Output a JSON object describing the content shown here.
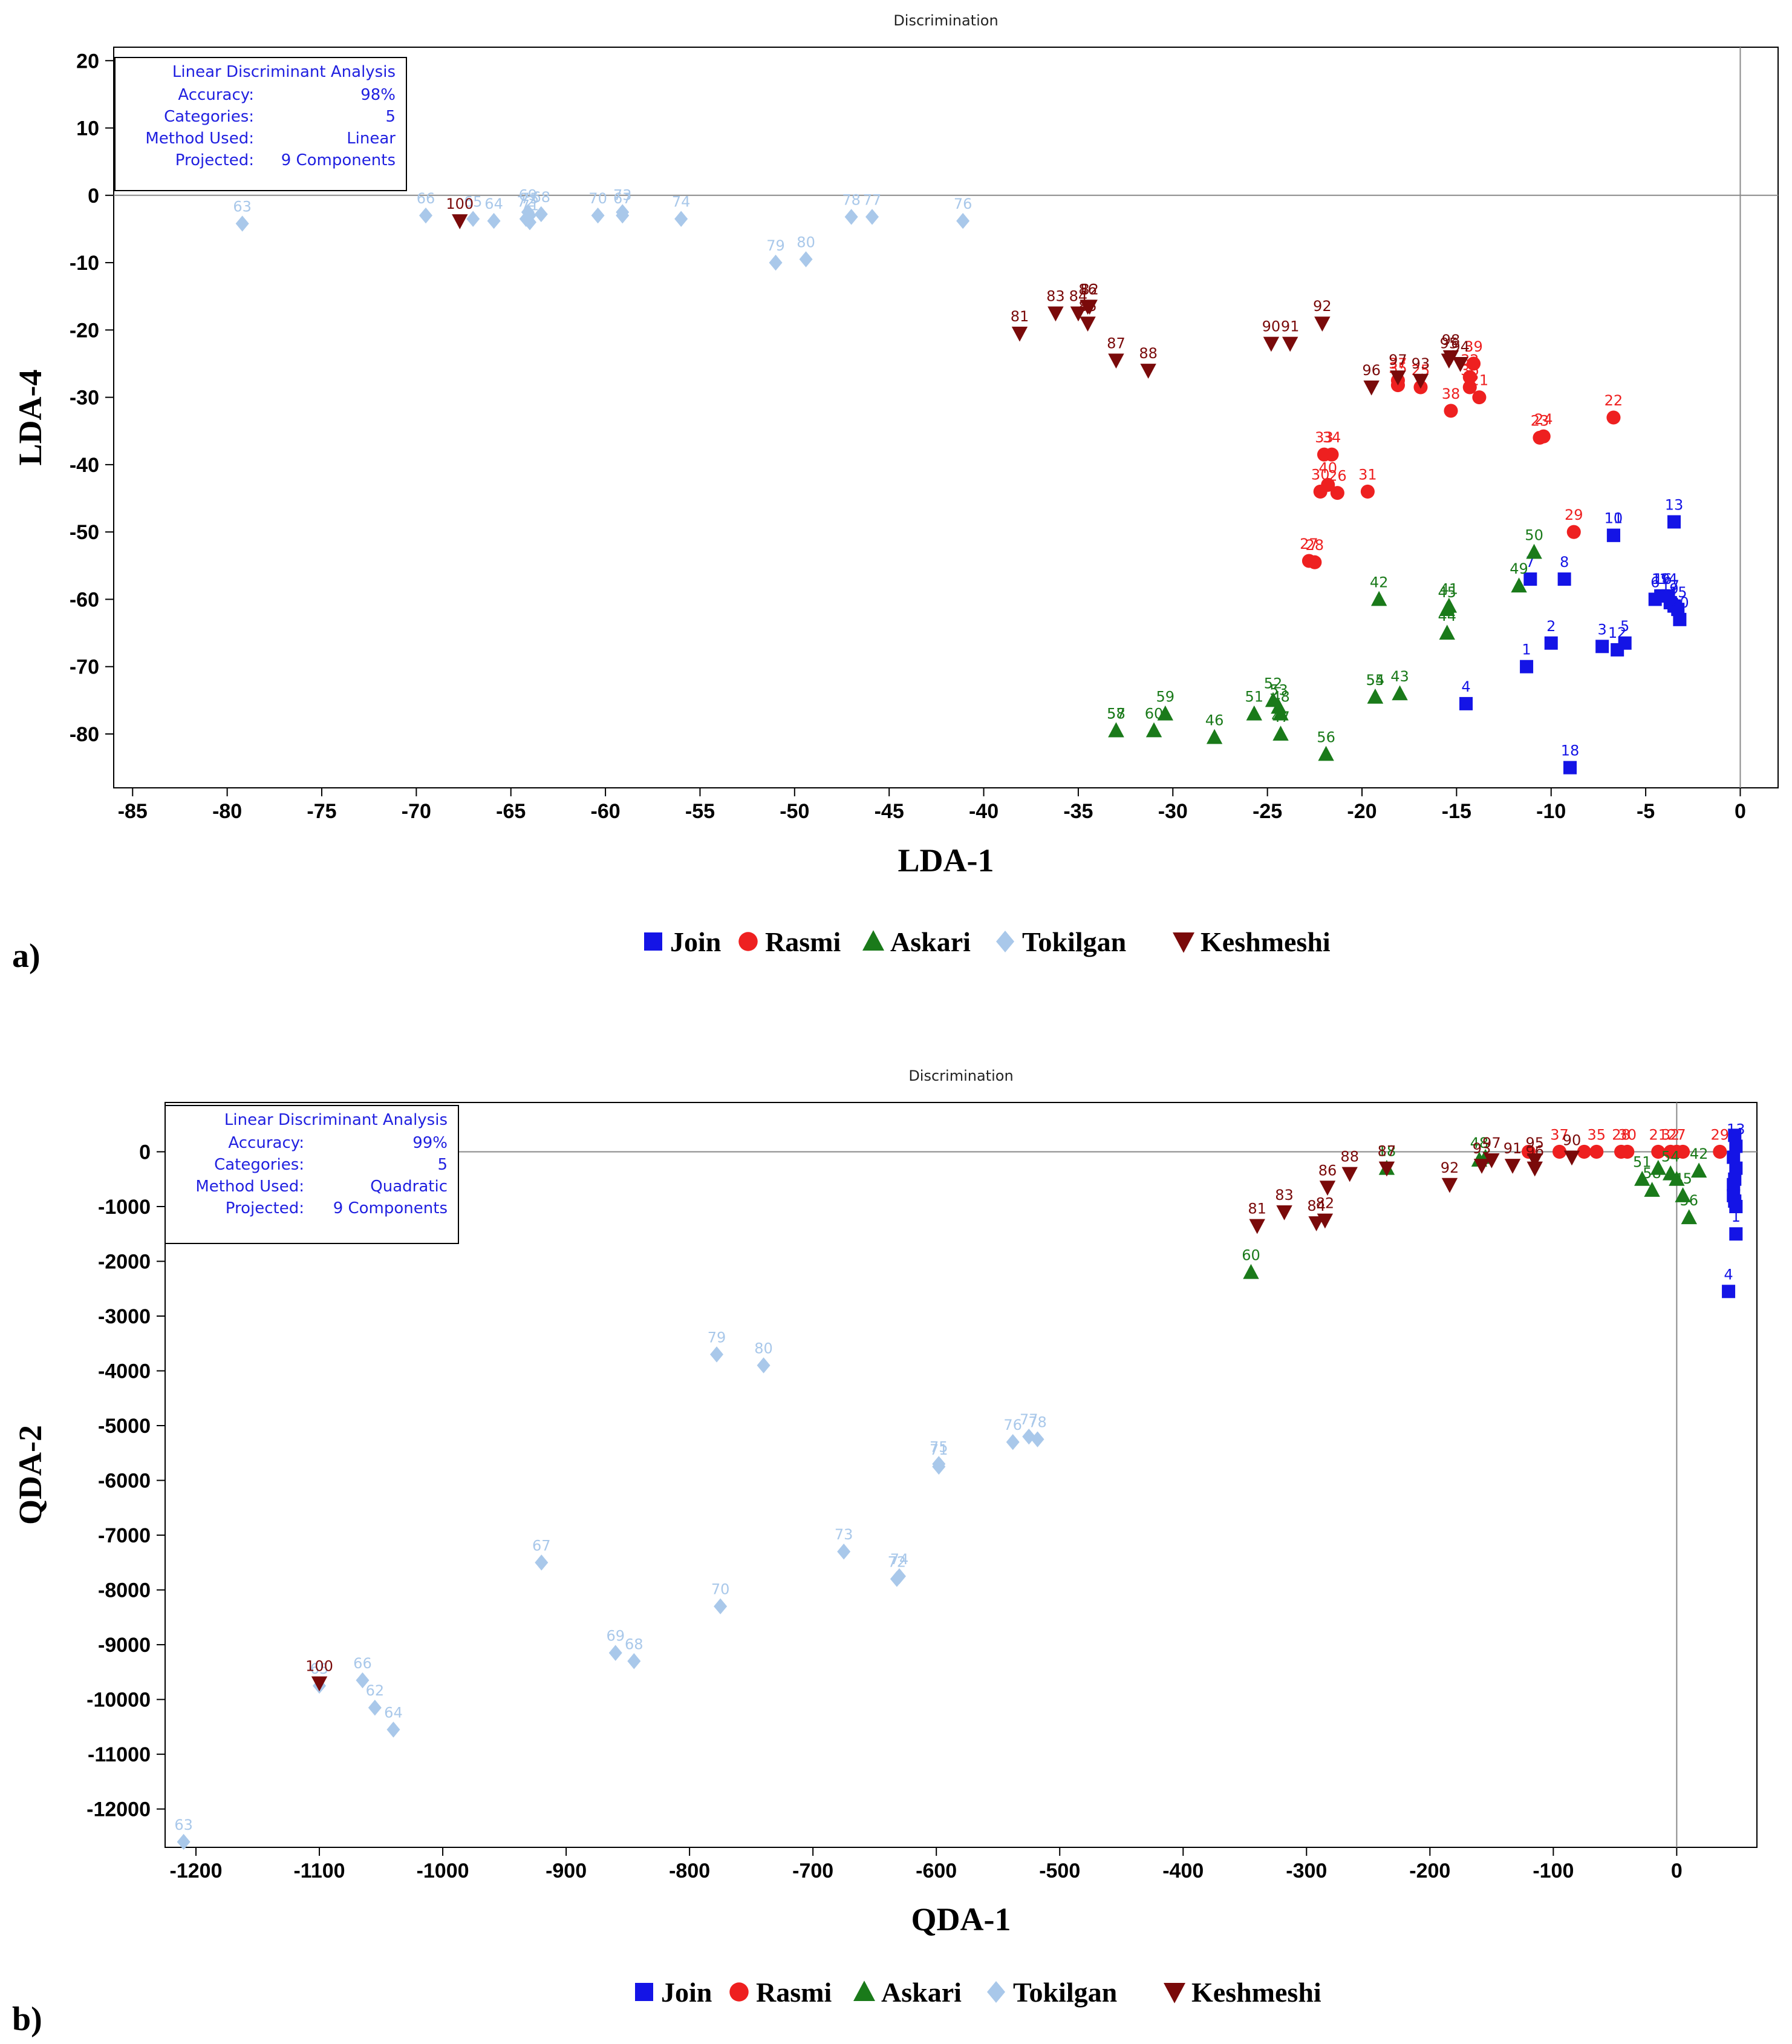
{
  "legend": {
    "entries": [
      {
        "label": "Join",
        "color": "#1414e6",
        "marker": "square"
      },
      {
        "label": "Rasmi",
        "color": "#ee2020",
        "marker": "circle"
      },
      {
        "label": "Askari",
        "color": "#1a7a1a",
        "marker": "triangle-up"
      },
      {
        "label": "Tokilgan",
        "color": "#a9c8ea",
        "marker": "diamond"
      },
      {
        "label": "Keshmeshi",
        "color": "#7a0a0a",
        "marker": "triangle-down"
      }
    ]
  },
  "chart_data": [
    {
      "panel_label": "a)",
      "type": "scatter",
      "title": "Discrimination",
      "xlabel": "LDA-1",
      "ylabel": "LDA-4",
      "xlim": [
        -86,
        2
      ],
      "ylim": [
        -88,
        22
      ],
      "xticks": [
        -85,
        -80,
        -75,
        -70,
        -65,
        -60,
        -55,
        -50,
        -45,
        -40,
        -35,
        -30,
        -25,
        -20,
        -15,
        -10,
        -5,
        0
      ],
      "yticks": [
        20,
        10,
        0,
        -10,
        -20,
        -30,
        -40,
        -50,
        -60,
        -70,
        -80
      ],
      "info_box": {
        "title": "Linear Discriminant Analysis",
        "rows": [
          [
            "Accuracy:",
            "98%"
          ],
          [
            "Categories:",
            "5"
          ],
          [
            "Method Used:",
            "Linear"
          ],
          [
            "Projected:",
            "9 Components"
          ]
        ]
      },
      "series": [
        {
          "name": "Join",
          "points": [
            [
              -11.3,
              -70,
              "1"
            ],
            [
              -10,
              -66.5,
              "2"
            ],
            [
              -7.3,
              -67,
              "3"
            ],
            [
              -14.5,
              -75.5,
              "4"
            ],
            [
              -6.1,
              -66.5,
              "5"
            ],
            [
              -4.5,
              -60,
              "6"
            ],
            [
              -11.1,
              -57,
              "7"
            ],
            [
              -9.3,
              -57,
              "8"
            ],
            [
              -3.5,
              -61,
              "9"
            ],
            [
              -6.7,
              -50.5,
              "10"
            ],
            [
              -6.7,
              -50.5,
              "11"
            ],
            [
              -6.5,
              -67.5,
              "12"
            ],
            [
              -3.5,
              -48.5,
              "13"
            ],
            [
              -3.8,
              -59.5,
              "14"
            ],
            [
              -3.3,
              -61.5,
              "15"
            ],
            [
              -4.1,
              -59.5,
              "16"
            ],
            [
              -3.7,
              -60.5,
              "17"
            ],
            [
              -9,
              -85,
              "18"
            ],
            [
              -4.2,
              -59.5,
              "19"
            ],
            [
              -3.2,
              -63,
              "20"
            ]
          ]
        },
        {
          "name": "Rasmi",
          "points": [
            [
              -13.8,
              -30,
              "21"
            ],
            [
              -6.7,
              -33,
              "22"
            ],
            [
              -10.6,
              -36,
              "23"
            ],
            [
              -10.4,
              -35.8,
              "24"
            ],
            [
              -16.9,
              -28.5,
              "25"
            ],
            [
              -21.3,
              -44.2,
              "26"
            ],
            [
              -22.8,
              -54.3,
              "27"
            ],
            [
              -22.5,
              -54.5,
              "28"
            ],
            [
              -8.8,
              -50,
              "29"
            ],
            [
              -22.2,
              -44,
              "30"
            ],
            [
              -19.7,
              -44,
              "31"
            ],
            [
              -14.3,
              -27,
              "32"
            ],
            [
              -22,
              -38.5,
              "33"
            ],
            [
              -21.6,
              -38.5,
              "34"
            ],
            [
              -18.1,
              -28.2,
              "35"
            ],
            [
              -14.3,
              -28.5,
              "36"
            ],
            [
              -18.1,
              -27.5,
              "37"
            ],
            [
              -15.3,
              -32,
              "38"
            ],
            [
              -14.1,
              -25,
              "39"
            ],
            [
              -21.8,
              -43,
              "40"
            ]
          ]
        },
        {
          "name": "Askari",
          "points": [
            [
              -15.4,
              -61,
              "41"
            ],
            [
              -19.1,
              -60,
              "42"
            ],
            [
              -18,
              -74,
              "43"
            ],
            [
              -15.5,
              -65,
              "44"
            ],
            [
              -15.5,
              -61.5,
              "45"
            ],
            [
              -27.8,
              -80.5,
              "46"
            ],
            [
              -24.3,
              -80,
              "47"
            ],
            [
              -24.3,
              -77,
              "48"
            ],
            [
              -11.7,
              -58,
              "49"
            ],
            [
              -10.9,
              -53,
              "50"
            ],
            [
              -25.7,
              -77,
              "51"
            ],
            [
              -24.7,
              -75,
              "52"
            ],
            [
              -24.4,
              -76,
              "53"
            ],
            [
              -19.3,
              -74.5,
              "54"
            ],
            [
              -19.3,
              -74.5,
              "55"
            ],
            [
              -21.9,
              -83,
              "56"
            ],
            [
              -33,
              -79.5,
              "57"
            ],
            [
              -33,
              -79.5,
              "58"
            ],
            [
              -30.4,
              -77,
              "59"
            ],
            [
              -31,
              -79.5,
              "60"
            ]
          ]
        },
        {
          "name": "Tokilgan",
          "points": [
            [
              -79.2,
              -4.2,
              "63"
            ],
            [
              -65.9,
              -3.8,
              "64"
            ],
            [
              -67,
              -3.5,
              "65"
            ],
            [
              -69.5,
              -3,
              "66"
            ],
            [
              -59.1,
              -3,
              "67"
            ],
            [
              -63.4,
              -2.8,
              "68"
            ],
            [
              -64.1,
              -2.5,
              "69"
            ],
            [
              -60.4,
              -3,
              "70"
            ],
            [
              -64,
              -4,
              "71"
            ],
            [
              -64.2,
              -3.5,
              "72"
            ],
            [
              -59.1,
              -2.5,
              "73"
            ],
            [
              -56,
              -3.5,
              "74"
            ],
            [
              -64,
              -3,
              "75"
            ],
            [
              -41.1,
              -3.8,
              "76"
            ],
            [
              -45.9,
              -3.2,
              "77"
            ],
            [
              -47,
              -3.2,
              "78"
            ],
            [
              -51,
              -10,
              "79"
            ],
            [
              -49.4,
              -9.5,
              "80"
            ]
          ]
        },
        {
          "name": "Keshmeshi",
          "points": [
            [
              -38.1,
              -20.5,
              "81"
            ],
            [
              -34.4,
              -16.5,
              "82"
            ],
            [
              -36.2,
              -17.5,
              "83"
            ],
            [
              -35,
              -17.5,
              "84"
            ],
            [
              -34.5,
              -19,
              "85"
            ],
            [
              -34.5,
              -16.5,
              "86"
            ],
            [
              -33,
              -24.5,
              "87"
            ],
            [
              -31.3,
              -26,
              "88"
            ],
            [
              -24.8,
              -22,
              "90"
            ],
            [
              -23.8,
              -22,
              "91"
            ],
            [
              -22.1,
              -19,
              "92"
            ],
            [
              -16.9,
              -27.5,
              "93"
            ],
            [
              -14.8,
              -25,
              "94"
            ],
            [
              -15.4,
              -24.5,
              "95"
            ],
            [
              -19.5,
              -28.5,
              "96"
            ],
            [
              -18.1,
              -27,
              "97"
            ],
            [
              -15.3,
              -24,
              "98"
            ],
            [
              -67.7,
              -3.8,
              "100"
            ]
          ]
        }
      ]
    },
    {
      "panel_label": "b)",
      "type": "scatter",
      "title": "Discrimination",
      "xlabel": "QDA-1",
      "ylabel": "QDA-2",
      "xlim": [
        -1225,
        65
      ],
      "ylim": [
        -12700,
        900
      ],
      "xticks": [
        -1200,
        -1100,
        -1000,
        -900,
        -800,
        -700,
        -600,
        -500,
        -400,
        -300,
        -200,
        -100,
        0
      ],
      "yticks": [
        0,
        -1000,
        -2000,
        -3000,
        -4000,
        -5000,
        -6000,
        -7000,
        -8000,
        -9000,
        -10000,
        -11000,
        -12000
      ],
      "info_box": {
        "title": "Linear Discriminant Analysis",
        "rows": [
          [
            "Accuracy:",
            "99%"
          ],
          [
            "Categories:",
            "5"
          ],
          [
            "Method Used:",
            "Quadratic"
          ],
          [
            "Projected:",
            "9 Components"
          ]
        ]
      },
      "series": [
        {
          "name": "Join",
          "points": [
            [
              42,
              -2550,
              "4"
            ],
            [
              48,
              -1500,
              "1"
            ],
            [
              48,
              -1000,
              ""
            ],
            [
              46,
              -800,
              ""
            ],
            [
              47,
              -500,
              ""
            ],
            [
              48,
              -300,
              ""
            ],
            [
              46,
              -100,
              ""
            ],
            [
              48,
              100,
              "13"
            ],
            [
              47,
              300,
              ""
            ],
            [
              46,
              -600,
              ""
            ],
            [
              47,
              -900,
              ""
            ]
          ]
        },
        {
          "name": "Rasmi",
          "points": [
            [
              -120,
              0,
              ""
            ],
            [
              -95,
              0,
              "37"
            ],
            [
              -75,
              0,
              ""
            ],
            [
              -65,
              0,
              "35"
            ],
            [
              -45,
              0,
              "28"
            ],
            [
              -40,
              0,
              "30"
            ],
            [
              -15,
              0,
              "21"
            ],
            [
              -5,
              0,
              "32"
            ],
            [
              0,
              0,
              "27"
            ],
            [
              5,
              0,
              ""
            ],
            [
              35,
              0,
              "29"
            ]
          ]
        },
        {
          "name": "Askari",
          "points": [
            [
              -345,
              -2200,
              "60"
            ],
            [
              -235,
              -300,
              "18"
            ],
            [
              -160,
              -150,
              "48"
            ],
            [
              -155,
              -100,
              ""
            ],
            [
              -28,
              -500,
              "51"
            ],
            [
              -20,
              -700,
              "58"
            ],
            [
              -15,
              -300,
              ""
            ],
            [
              -5,
              -400,
              "54"
            ],
            [
              0,
              -500,
              ""
            ],
            [
              5,
              -800,
              "45"
            ],
            [
              10,
              -1200,
              "56"
            ],
            [
              18,
              -350,
              "42"
            ]
          ]
        },
        {
          "name": "Tokilgan",
          "points": [
            [
              -1210,
              -12600,
              "63"
            ],
            [
              -1040,
              -10550,
              "64"
            ],
            [
              -1055,
              -10150,
              "62"
            ],
            [
              -1065,
              -9650,
              "66"
            ],
            [
              -1100,
              -9750,
              "65"
            ],
            [
              -920,
              -7500,
              "67"
            ],
            [
              -845,
              -9300,
              "68"
            ],
            [
              -860,
              -9150,
              "69"
            ],
            [
              -775,
              -8300,
              "70"
            ],
            [
              -632,
              -7800,
              "72"
            ],
            [
              -675,
              -7300,
              "73"
            ],
            [
              -630,
              -7750,
              "74"
            ],
            [
              -598,
              -5700,
              "75"
            ],
            [
              -598,
              -5750,
              "71"
            ],
            [
              -538,
              -5300,
              "76"
            ],
            [
              -525,
              -5200,
              "77"
            ],
            [
              -518,
              -5250,
              "78"
            ],
            [
              -778,
              -3700,
              "79"
            ],
            [
              -740,
              -3900,
              "80"
            ]
          ]
        },
        {
          "name": "Keshmeshi",
          "points": [
            [
              -340,
              -1350,
              "81"
            ],
            [
              -318,
              -1100,
              "83"
            ],
            [
              -292,
              -1300,
              "84"
            ],
            [
              -285,
              -1250,
              "82"
            ],
            [
              -283,
              -650,
              "86"
            ],
            [
              -265,
              -400,
              "88"
            ],
            [
              -235,
              -300,
              "87"
            ],
            [
              -184,
              -600,
              "92"
            ],
            [
              -158,
              -250,
              "93"
            ],
            [
              -150,
              -150,
              "97"
            ],
            [
              -133,
              -250,
              "91"
            ],
            [
              -115,
              -150,
              "95"
            ],
            [
              -115,
              -300,
              "96"
            ],
            [
              -85,
              -100,
              "90"
            ],
            [
              -1100,
              -9700,
              "100"
            ]
          ]
        }
      ]
    }
  ]
}
